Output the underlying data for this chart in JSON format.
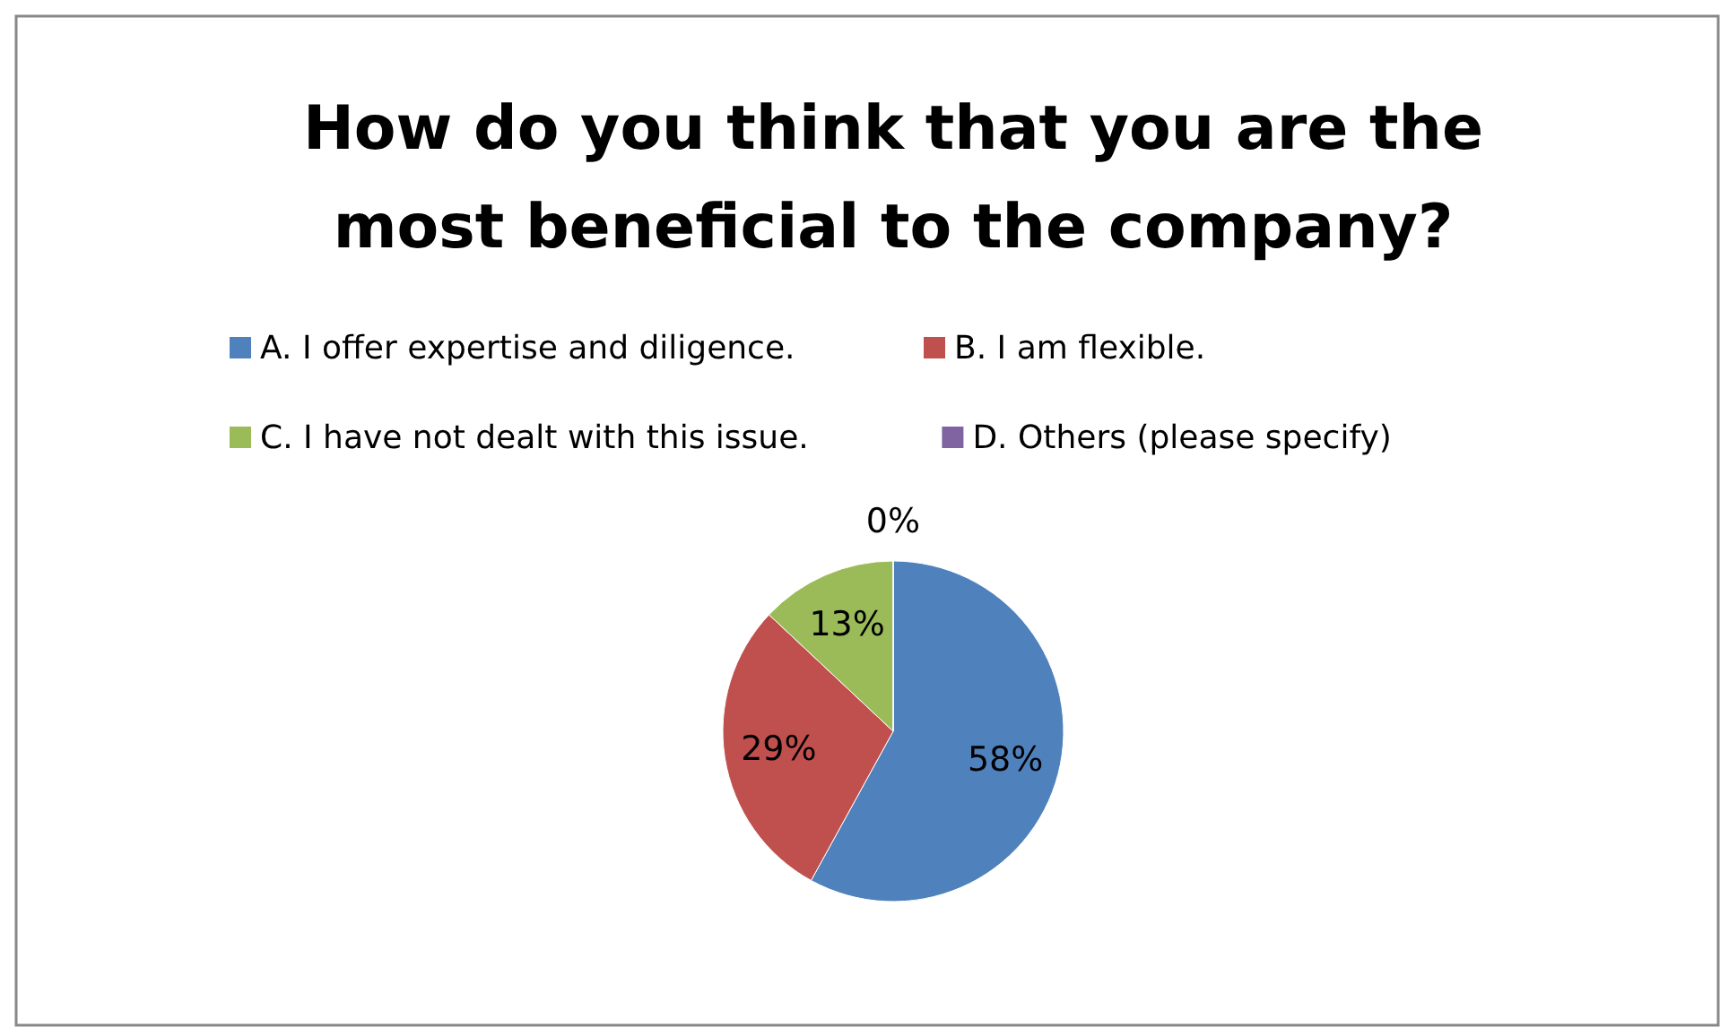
{
  "chart_data": {
    "type": "pie",
    "title": "How do you think that you are the most beneficial to the company?",
    "categories": [
      "A. I offer expertise and diligence.",
      "B. I am flexible.",
      "C. I have not dealt with this issue.",
      "D. Others (please specify)"
    ],
    "values": [
      58,
      29,
      13,
      0
    ],
    "value_labels": [
      "58%",
      "29%",
      "13%",
      "0%"
    ],
    "colors": [
      "#4f81bd",
      "#c0504d",
      "#9bbb59",
      "#8064a2"
    ],
    "legend": "top"
  }
}
